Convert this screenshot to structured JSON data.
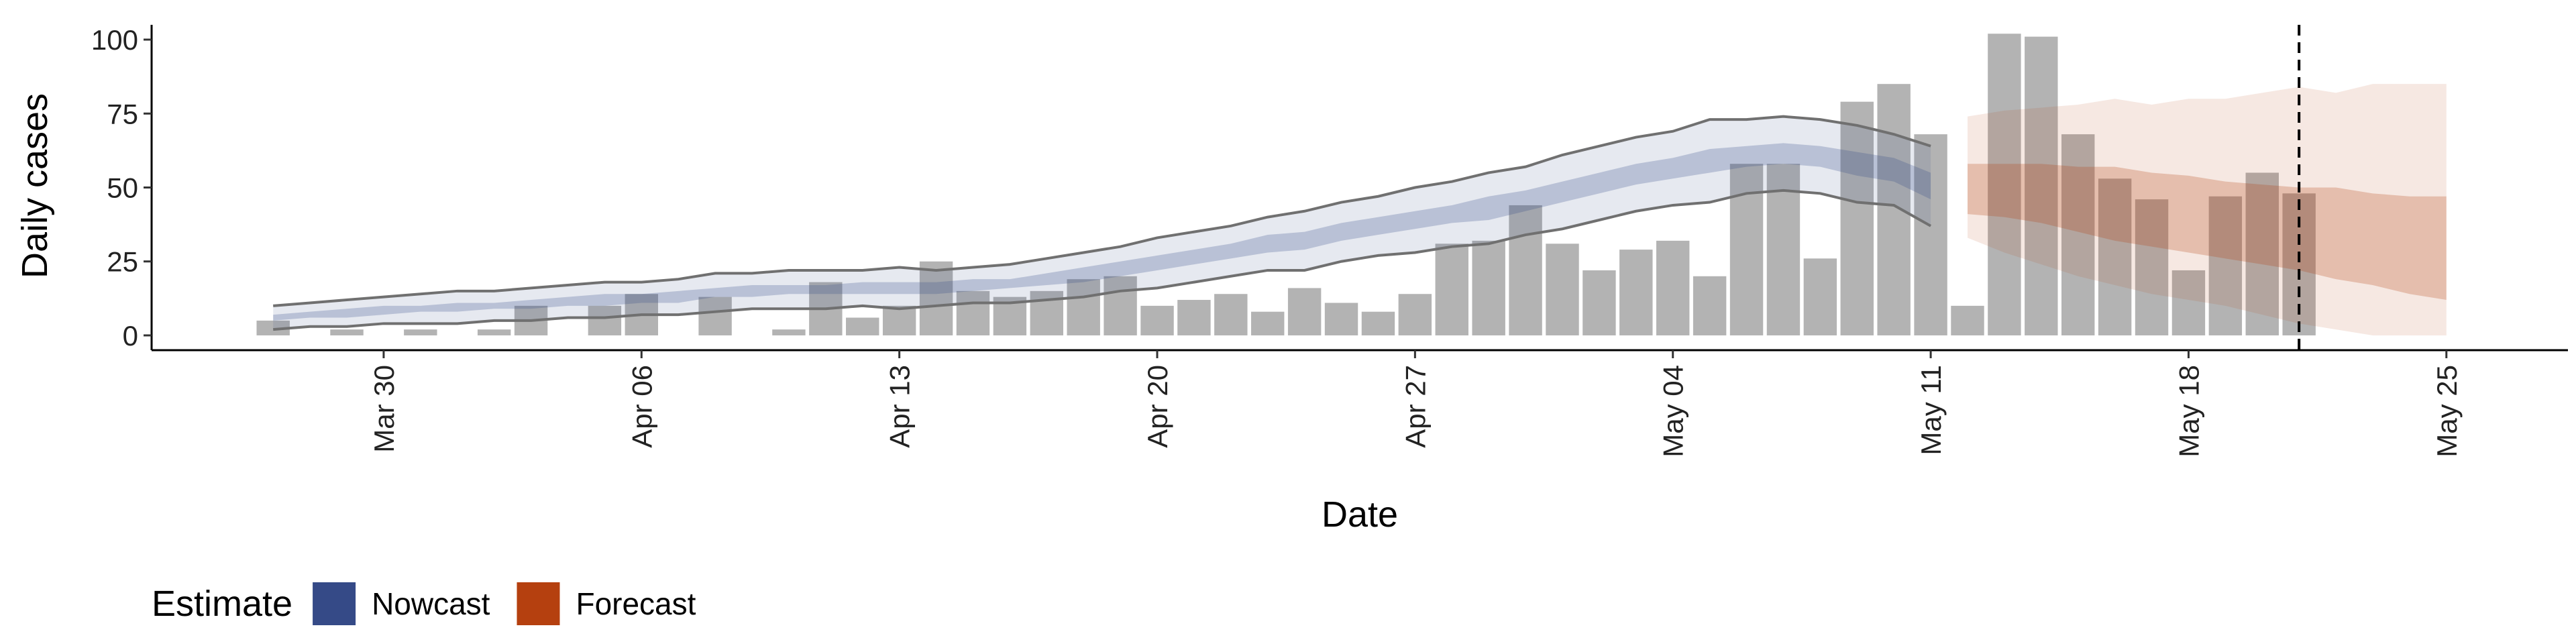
{
  "chart_data": {
    "type": "bar",
    "x_label": "Date",
    "y_label": "Daily cases",
    "legend_title": "Estimate",
    "legend_position": "bottom-left",
    "x": [
      "Mar 27",
      "Mar 28",
      "Mar 29",
      "Mar 30",
      "Mar 31",
      "Apr 01",
      "Apr 02",
      "Apr 03",
      "Apr 04",
      "Apr 05",
      "Apr 06",
      "Apr 07",
      "Apr 08",
      "Apr 09",
      "Apr 10",
      "Apr 11",
      "Apr 12",
      "Apr 13",
      "Apr 14",
      "Apr 15",
      "Apr 16",
      "Apr 17",
      "Apr 18",
      "Apr 19",
      "Apr 20",
      "Apr 21",
      "Apr 22",
      "Apr 23",
      "Apr 24",
      "Apr 25",
      "Apr 26",
      "Apr 27",
      "Apr 28",
      "Apr 29",
      "Apr 30",
      "May 01",
      "May 02",
      "May 03",
      "May 04",
      "May 05",
      "May 06",
      "May 07",
      "May 08",
      "May 09",
      "May 10",
      "May 11",
      "May 12",
      "May 13",
      "May 14",
      "May 15",
      "May 16",
      "May 17",
      "May 18",
      "May 19",
      "May 20",
      "May 21",
      "May 22",
      "May 23",
      "May 24",
      "May 25"
    ],
    "bars": {
      "color": "#b3b3b3",
      "values": [
        5,
        0,
        2,
        0,
        2,
        0,
        2,
        10,
        0,
        10,
        14,
        0,
        13,
        0,
        2,
        18,
        6,
        10,
        25,
        15,
        13,
        15,
        19,
        20,
        10,
        12,
        14,
        8,
        16,
        11,
        8,
        14,
        31,
        32,
        44,
        31,
        22,
        29,
        32,
        20,
        58,
        58,
        26,
        79,
        85,
        68,
        10,
        102,
        101,
        68,
        53,
        46,
        22,
        47,
        55,
        48,
        null,
        null,
        null,
        null
      ]
    },
    "series": [
      {
        "name": "Nowcast",
        "color": "#354a87",
        "line_color": "#707070",
        "upper_90": [
          10,
          11,
          12,
          13,
          14,
          15,
          15,
          16,
          17,
          18,
          18,
          19,
          21,
          21,
          22,
          22,
          22,
          23,
          22,
          23,
          24,
          26,
          28,
          30,
          33,
          35,
          37,
          40,
          42,
          45,
          47,
          50,
          52,
          55,
          57,
          61,
          64,
          67,
          69,
          73,
          73,
          74,
          73,
          71,
          68,
          64,
          null,
          null,
          null,
          null,
          null,
          null,
          null,
          null,
          null,
          null,
          null,
          null,
          null,
          null
        ],
        "lower_90": [
          2,
          3,
          3,
          4,
          4,
          4,
          5,
          5,
          6,
          6,
          7,
          7,
          8,
          9,
          9,
          9,
          10,
          9,
          10,
          11,
          11,
          12,
          13,
          15,
          16,
          18,
          20,
          22,
          22,
          25,
          27,
          28,
          30,
          31,
          34,
          36,
          39,
          42,
          44,
          45,
          48,
          49,
          48,
          45,
          44,
          37,
          null,
          null,
          null,
          null,
          null,
          null,
          null,
          null,
          null,
          null,
          null,
          null,
          null,
          null
        ],
        "upper_50": [
          7,
          8,
          9,
          10,
          10,
          11,
          11,
          12,
          13,
          14,
          14,
          15,
          16,
          17,
          17,
          17,
          18,
          18,
          18,
          19,
          19,
          21,
          23,
          25,
          27,
          29,
          31,
          34,
          35,
          38,
          40,
          42,
          44,
          47,
          49,
          52,
          55,
          58,
          60,
          63,
          64,
          65,
          64,
          62,
          60,
          55,
          null,
          null,
          null,
          null,
          null,
          null,
          null,
          null,
          null,
          null,
          null,
          null,
          null,
          null
        ],
        "lower_50": [
          5,
          6,
          6,
          7,
          8,
          8,
          9,
          9,
          10,
          10,
          11,
          11,
          13,
          13,
          14,
          14,
          14,
          14,
          14,
          15,
          16,
          17,
          18,
          20,
          22,
          24,
          26,
          28,
          29,
          32,
          34,
          36,
          38,
          39,
          42,
          45,
          48,
          51,
          53,
          55,
          57,
          58,
          57,
          54,
          52,
          46,
          null,
          null,
          null,
          null,
          null,
          null,
          null,
          null,
          null,
          null,
          null,
          null,
          null,
          null
        ]
      },
      {
        "name": "Forecast",
        "color": "#b5400f",
        "upper_90": [
          null,
          null,
          null,
          null,
          null,
          null,
          null,
          null,
          null,
          null,
          null,
          null,
          null,
          null,
          null,
          null,
          null,
          null,
          null,
          null,
          null,
          null,
          null,
          null,
          null,
          null,
          null,
          null,
          null,
          null,
          null,
          null,
          null,
          null,
          null,
          null,
          null,
          null,
          null,
          null,
          null,
          null,
          null,
          null,
          null,
          null,
          74,
          76,
          77,
          78,
          80,
          78,
          80,
          80,
          82,
          84,
          82,
          85,
          85,
          85
        ],
        "lower_90": [
          null,
          null,
          null,
          null,
          null,
          null,
          null,
          null,
          null,
          null,
          null,
          null,
          null,
          null,
          null,
          null,
          null,
          null,
          null,
          null,
          null,
          null,
          null,
          null,
          null,
          null,
          null,
          null,
          null,
          null,
          null,
          null,
          null,
          null,
          null,
          null,
          null,
          null,
          null,
          null,
          null,
          null,
          null,
          null,
          null,
          null,
          33,
          28,
          24,
          20,
          17,
          14,
          12,
          10,
          7,
          4,
          2,
          0,
          0,
          0
        ],
        "upper_50": [
          null,
          null,
          null,
          null,
          null,
          null,
          null,
          null,
          null,
          null,
          null,
          null,
          null,
          null,
          null,
          null,
          null,
          null,
          null,
          null,
          null,
          null,
          null,
          null,
          null,
          null,
          null,
          null,
          null,
          null,
          null,
          null,
          null,
          null,
          null,
          null,
          null,
          null,
          null,
          null,
          null,
          null,
          null,
          null,
          null,
          null,
          58,
          58,
          58,
          57,
          57,
          55,
          54,
          52,
          51,
          50,
          50,
          48,
          47,
          47
        ],
        "lower_50": [
          null,
          null,
          null,
          null,
          null,
          null,
          null,
          null,
          null,
          null,
          null,
          null,
          null,
          null,
          null,
          null,
          null,
          null,
          null,
          null,
          null,
          null,
          null,
          null,
          null,
          null,
          null,
          null,
          null,
          null,
          null,
          null,
          null,
          null,
          null,
          null,
          null,
          null,
          null,
          null,
          null,
          null,
          null,
          null,
          null,
          null,
          41,
          40,
          38,
          35,
          32,
          30,
          28,
          26,
          24,
          22,
          19,
          17,
          14,
          12
        ]
      }
    ],
    "vline": "May 21",
    "xticks": [
      "Mar 30",
      "Apr 06",
      "Apr 13",
      "Apr 20",
      "Apr 27",
      "May 04",
      "May 11",
      "May 18",
      "May 25"
    ],
    "ylim": [
      -5,
      105
    ],
    "yticks": [
      0,
      25,
      50,
      75,
      100
    ],
    "grid": false
  }
}
